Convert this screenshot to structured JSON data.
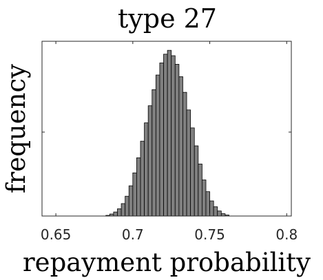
{
  "chart_data": {
    "type": "bar",
    "title": "type 27",
    "xlabel": "repayment probability",
    "ylabel": "frequency",
    "xlim": [
      0.641,
      0.803
    ],
    "ylim": [
      0,
      1
    ],
    "xticks": [
      0.65,
      0.7,
      0.75,
      0.8
    ],
    "xtick_labels": [
      "0.65",
      "0.7",
      "0.75",
      "0.8"
    ],
    "ytick_values": [
      0.5
    ],
    "grid": false,
    "bin_width": 0.0025,
    "bin_start": 0.6825,
    "values": [
      0.004,
      0.012,
      0.024,
      0.043,
      0.074,
      0.118,
      0.18,
      0.257,
      0.347,
      0.446,
      0.555,
      0.657,
      0.753,
      0.84,
      0.912,
      0.964,
      0.987,
      0.955,
      0.904,
      0.83,
      0.737,
      0.632,
      0.525,
      0.418,
      0.31,
      0.215,
      0.145,
      0.09,
      0.055,
      0.03,
      0.014,
      0.006
    ]
  }
}
